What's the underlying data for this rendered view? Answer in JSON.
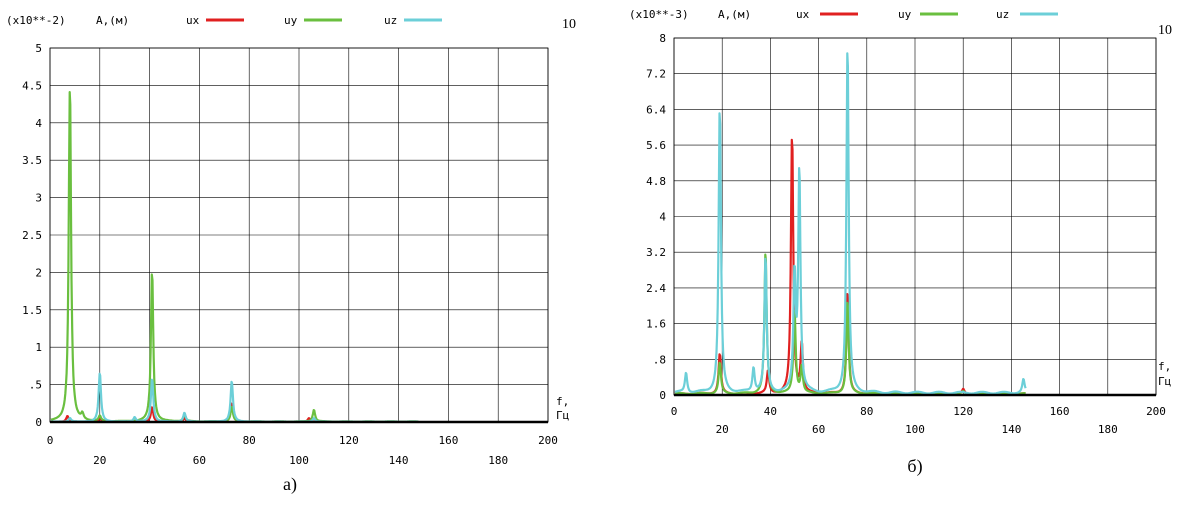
{
  "chart_data": [
    {
      "type": "line",
      "panel_label": "а)",
      "corner_label": "10",
      "scale_note": "(x10**-2)",
      "ylabel": "A,(м)",
      "xlabel": "f,",
      "xunit": "Гц",
      "xlim": [
        0,
        200
      ],
      "ylim": [
        0,
        5
      ],
      "x_ticks": [
        "0",
        "20",
        "40",
        "60",
        "80",
        "100",
        "120",
        "140",
        "160",
        "180",
        "200"
      ],
      "y_ticks": [
        "0",
        ".5",
        "1",
        "1.5",
        "2",
        "2.5",
        "3",
        "3.5",
        "4",
        "4.5",
        "5"
      ],
      "series": [
        {
          "name": "ux",
          "color": "#e02020",
          "peaks": [
            [
              7,
              0.08
            ],
            [
              20,
              0.05
            ],
            [
              41,
              0.2
            ],
            [
              54,
              0.05
            ],
            [
              73,
              0.25
            ],
            [
              104,
              0.05
            ]
          ],
          "baseline": 0.003,
          "x_end": 148
        },
        {
          "name": "uy",
          "color": "#6abf3f",
          "peaks": [
            [
              8,
              4.55
            ],
            [
              13,
              0.08
            ],
            [
              20,
              0.07
            ],
            [
              41,
              2.03
            ],
            [
              54,
              0.1
            ],
            [
              73,
              0.2
            ],
            [
              106,
              0.16
            ]
          ],
          "baseline": 0.006,
          "x_end": 148
        },
        {
          "name": "uz",
          "color": "#6ccfd8",
          "peaks": [
            [
              8,
              0.05
            ],
            [
              20,
              0.66
            ],
            [
              34,
              0.06
            ],
            [
              41,
              0.58
            ],
            [
              54,
              0.12
            ],
            [
              73,
              0.55
            ],
            [
              106,
              0.05
            ]
          ],
          "baseline": 0.004,
          "x_end": 148
        }
      ]
    },
    {
      "type": "line",
      "panel_label": "б)",
      "corner_label": "10",
      "scale_note": "(x10**-3)",
      "ylabel": "A,(м)",
      "xlabel": "f,",
      "xunit": "Гц",
      "xlim": [
        0,
        200
      ],
      "ylim": [
        0,
        8
      ],
      "x_ticks": [
        "0",
        "20",
        "40",
        "60",
        "80",
        "100",
        "120",
        "140",
        "160",
        "180",
        "200"
      ],
      "y_ticks": [
        "0",
        ".8",
        "1.6",
        "2.4",
        "3.2",
        "4",
        "4.8",
        "5.6",
        "6.4",
        "7.2",
        "8"
      ],
      "series": [
        {
          "name": "ux",
          "color": "#e02020",
          "peaks": [
            [
              19,
              0.9
            ],
            [
              39,
              0.5
            ],
            [
              49,
              5.85
            ],
            [
              53,
              1.1
            ],
            [
              72,
              2.3
            ],
            [
              120,
              0.1
            ]
          ],
          "baseline": 0.03,
          "x_end": 146
        },
        {
          "name": "uy",
          "color": "#6abf3f",
          "peaks": [
            [
              19,
              0.7
            ],
            [
              38,
              3.2
            ],
            [
              50,
              1.9
            ],
            [
              53,
              0.6
            ],
            [
              72,
              2.1
            ],
            [
              120,
              0.05
            ]
          ],
          "baseline": 0.03,
          "x_end": 146
        },
        {
          "name": "uz",
          "color": "#6ccfd8",
          "peaks": [
            [
              5,
              0.45
            ],
            [
              19,
              6.45
            ],
            [
              33,
              0.55
            ],
            [
              38,
              3.05
            ],
            [
              50,
              2.6
            ],
            [
              52,
              5.0
            ],
            [
              72,
              7.85
            ],
            [
              145,
              0.3
            ]
          ],
          "baseline": 0.05,
          "x_end": 146
        }
      ]
    }
  ]
}
